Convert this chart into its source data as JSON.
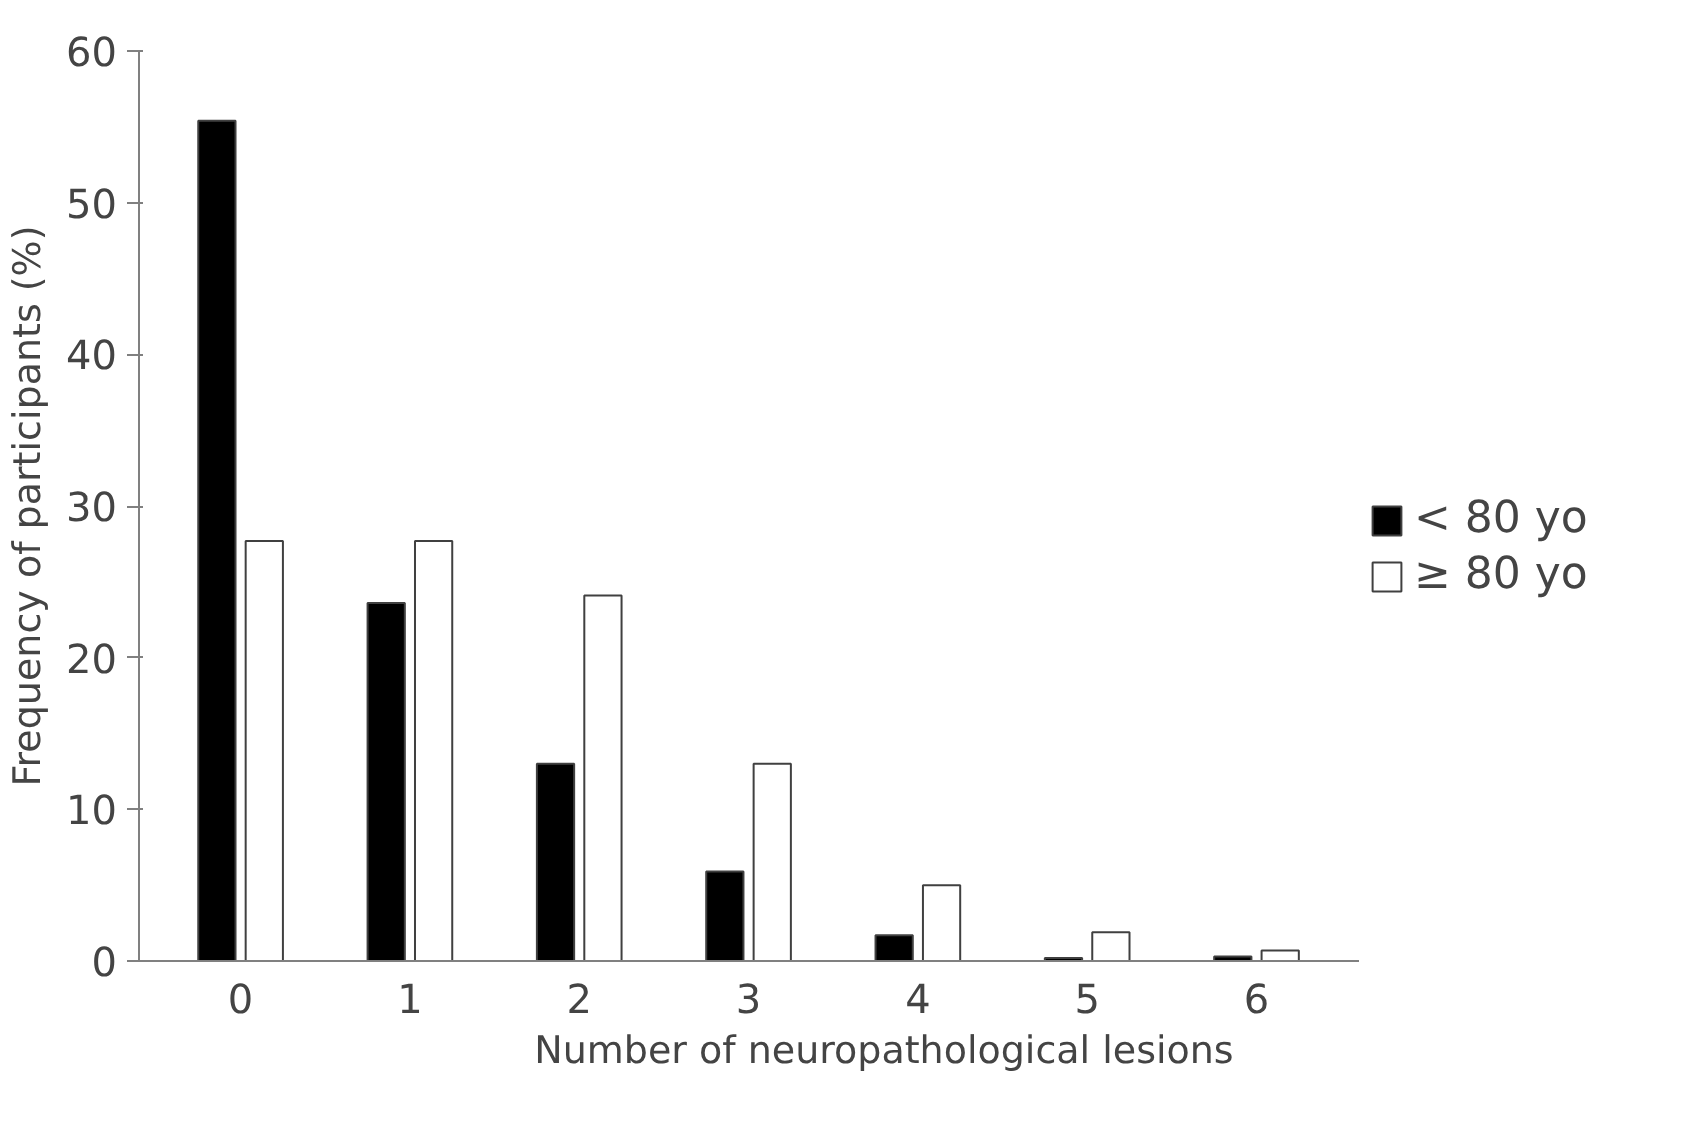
{
  "chart_data": {
    "type": "bar",
    "xlabel": "Number of neuropathological lesions",
    "ylabel": "Frequency of participants (%)",
    "categories": [
      "0",
      "1",
      "2",
      "3",
      "4",
      "5",
      "6"
    ],
    "series": [
      {
        "name": "< 80 yo",
        "color": "#000000",
        "values": [
          55.4,
          23.6,
          13.0,
          5.9,
          1.7,
          0.2,
          0.3
        ]
      },
      {
        "name": "≥ 80 yo",
        "color": "#ffffff",
        "values": [
          27.7,
          27.7,
          24.1,
          13.0,
          5.0,
          1.9,
          0.7
        ]
      }
    ],
    "ylim": [
      0,
      60
    ],
    "yticks": [
      0,
      10,
      20,
      30,
      40,
      50,
      60
    ],
    "grid": false,
    "legend": "right"
  }
}
